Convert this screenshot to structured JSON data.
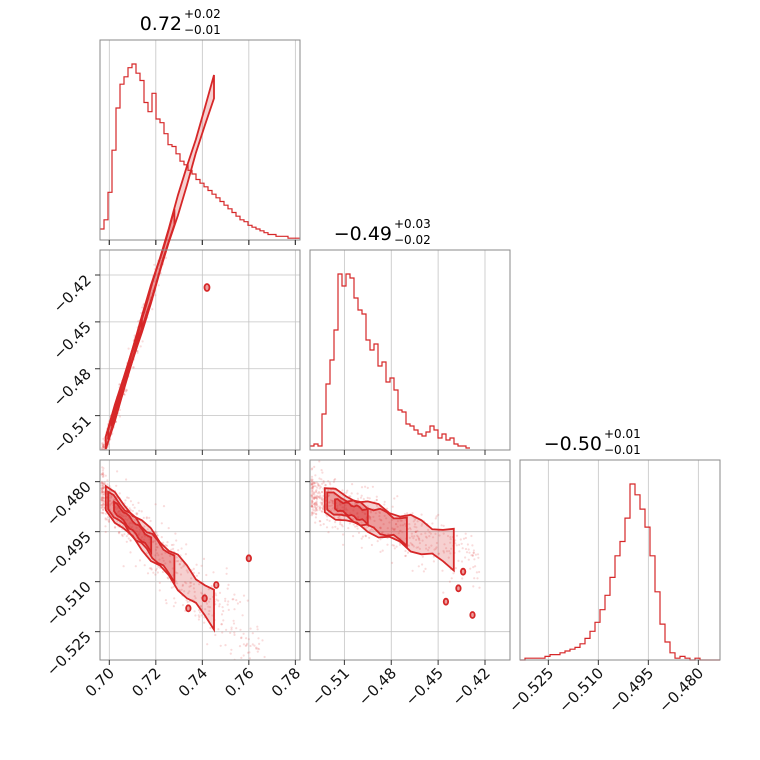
{
  "chart_data": {
    "type": "corner",
    "color": "#d62728",
    "grid": true,
    "parameters": [
      {
        "median": 0.72,
        "plus": "+0.02",
        "minus": "−0.01",
        "title_main": "0.72",
        "range": [
          0.696,
          0.782
        ],
        "ticks": [
          0.7,
          0.72,
          0.74,
          0.76,
          0.78
        ],
        "tick_labels": [
          "0.70",
          "0.72",
          "0.74",
          "0.76",
          "0.78"
        ]
      },
      {
        "median": -0.49,
        "plus": "+0.03",
        "minus": "−0.02",
        "title_main": "−0.49",
        "range": [
          -0.532,
          -0.404
        ],
        "ticks": [
          -0.51,
          -0.48,
          -0.45,
          -0.42
        ],
        "tick_labels": [
          "−0.51",
          "−0.48",
          "−0.45",
          "−0.42"
        ]
      },
      {
        "median": -0.5,
        "plus": "+0.01",
        "minus": "−0.01",
        "title_main": "−0.50",
        "range": [
          -0.5335,
          -0.4735
        ],
        "ticks": [
          -0.525,
          -0.51,
          -0.495,
          -0.48
        ],
        "tick_labels": [
          "−0.525",
          "−0.510",
          "−0.495",
          "−0.480"
        ]
      }
    ],
    "histograms": [
      {
        "param": 0,
        "bin_start": 0.696,
        "bin_width": 0.00172,
        "counts": [
          6,
          11,
          26,
          49,
          72,
          85,
          89,
          94,
          96,
          91,
          87,
          75,
          70,
          80,
          66,
          64,
          58,
          52,
          51,
          47,
          43,
          41,
          38,
          36,
          33,
          31,
          29,
          27,
          25,
          23,
          21,
          19,
          17,
          15,
          13,
          11,
          10,
          8,
          7,
          6,
          5,
          4,
          3,
          3,
          2,
          2,
          2,
          1,
          1,
          1
        ]
      },
      {
        "param": 1,
        "bin_start": -0.532,
        "bin_width": 0.00256,
        "counts": [
          2,
          3,
          2,
          18,
          33,
          45,
          60,
          88,
          82,
          88,
          86,
          76,
          70,
          68,
          55,
          50,
          53,
          42,
          44,
          34,
          36,
          30,
          20,
          19,
          13,
          12,
          10,
          8,
          7,
          9,
          12,
          10,
          6,
          8,
          5,
          6,
          3,
          2,
          2,
          1
        ]
      },
      {
        "param": 2,
        "bin_start": -0.5335,
        "bin_width": 0.0015,
        "counts": [
          0,
          1,
          1,
          1,
          1,
          2,
          3,
          3,
          4,
          5,
          6,
          7,
          9,
          12,
          16,
          21,
          28,
          36,
          46,
          58,
          66,
          79,
          98,
          92,
          84,
          74,
          58,
          38,
          20,
          10,
          4,
          1,
          2,
          1,
          0,
          1,
          0,
          0,
          0,
          0
        ]
      }
    ],
    "scatter": [
      {
        "x_param": 0,
        "y_param": 1,
        "relation": "y = -0.52 + 4.9*(x - 0.70)"
      },
      {
        "x_param": 0,
        "y_param": 2,
        "relation": "y = -0.486 - 0.72*(x - 0.70)"
      },
      {
        "x_param": 1,
        "y_param": 2,
        "relation": "y = -0.486 - 0.18*(x + 0.52)"
      }
    ]
  }
}
